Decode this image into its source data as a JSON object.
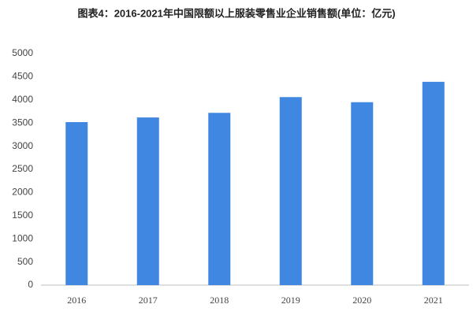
{
  "chart_data": {
    "type": "bar",
    "title": "图表4：2016-2021年中国限额以上服装零售业企业销售额(单位：亿元)",
    "categories": [
      "2016",
      "2017",
      "2018",
      "2019",
      "2020",
      "2021"
    ],
    "values": [
      3520,
      3620,
      3720,
      4060,
      3950,
      4390
    ],
    "color": "#3f87e0",
    "ylim": [
      0,
      5000
    ],
    "yticks": [
      0,
      500,
      1000,
      1500,
      2000,
      2500,
      3000,
      3500,
      4000,
      4500,
      5000
    ],
    "grid": false
  }
}
